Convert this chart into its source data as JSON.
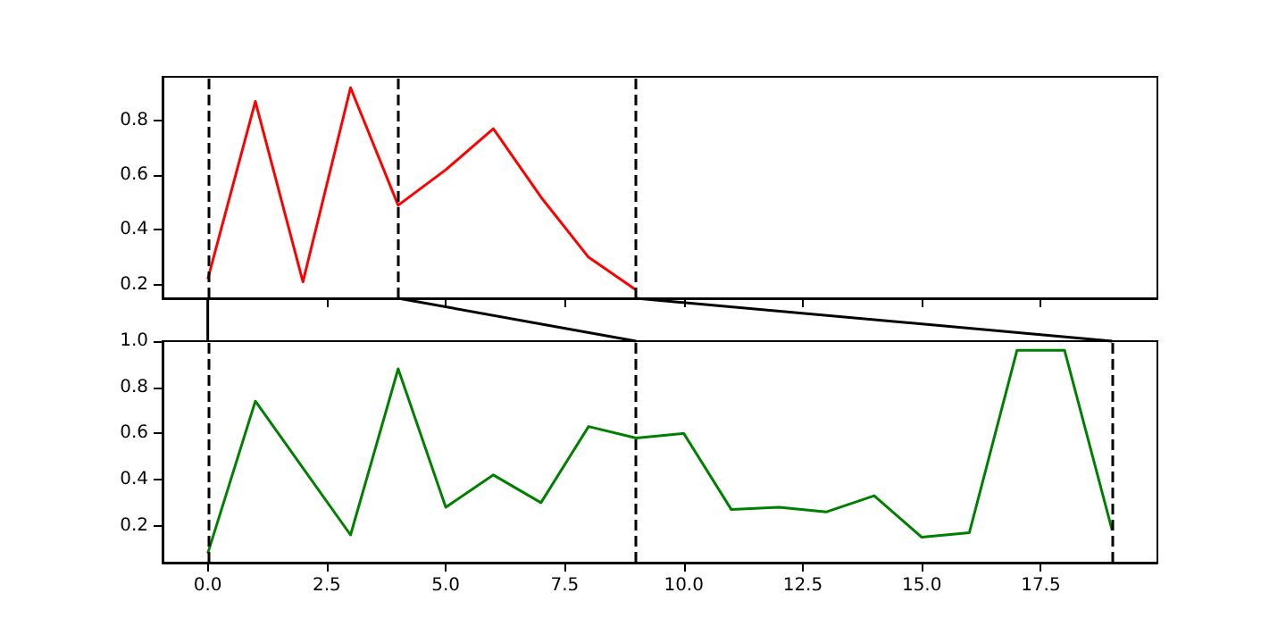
{
  "chart_data": [
    {
      "type": "line",
      "x": [
        0,
        1,
        2,
        3,
        4,
        5,
        6,
        7,
        8,
        9
      ],
      "series": [
        {
          "color": "#ff0000",
          "values": [
            0.22,
            0.87,
            0.21,
            0.92,
            0.49,
            0.62,
            0.77,
            0.52,
            0.3,
            0.18
          ]
        }
      ],
      "xlim": [
        -0.95,
        19.95
      ],
      "ylim": [
        0.15,
        0.96
      ],
      "xticks": [
        {
          "value": 0,
          "label": null
        },
        {
          "value": 2.5,
          "label": null
        },
        {
          "value": 5,
          "label": null
        },
        {
          "value": 7.5,
          "label": null
        },
        {
          "value": 10,
          "label": null
        },
        {
          "value": 12.5,
          "label": null
        },
        {
          "value": 15,
          "label": null
        },
        {
          "value": 17.5,
          "label": null
        }
      ],
      "yticks": [
        0.2,
        0.4,
        0.6,
        0.8
      ],
      "tick_labels": "y",
      "grid": false,
      "ref_lines": [
        {
          "axis": "x",
          "value": 0,
          "color": "#000000",
          "line_style": "dashed"
        },
        {
          "axis": "x",
          "value": 4,
          "color": "#000000",
          "line_style": "dashed"
        },
        {
          "axis": "x",
          "value": 9,
          "color": "#000000",
          "line_style": "dashed"
        }
      ]
    },
    {
      "type": "line",
      "x": [
        0,
        1,
        2,
        3,
        4,
        5,
        6,
        7,
        8,
        9,
        10,
        11,
        12,
        13,
        14,
        15,
        16,
        17,
        18,
        19
      ],
      "series": [
        {
          "color": "#008000",
          "values": [
            0.08,
            0.74,
            0.45,
            0.16,
            0.88,
            0.28,
            0.42,
            0.3,
            0.63,
            0.58,
            0.6,
            0.27,
            0.28,
            0.26,
            0.33,
            0.15,
            0.17,
            0.96,
            0.96,
            0.18
          ]
        }
      ],
      "xlim": [
        -0.95,
        19.95
      ],
      "ylim": [
        0.04,
        1.0
      ],
      "xticks": [
        {
          "value": 0,
          "label": "0.0"
        },
        {
          "value": 2.5,
          "label": "2.5"
        },
        {
          "value": 5,
          "label": "5.0"
        },
        {
          "value": 7.5,
          "label": "7.5"
        },
        {
          "value": 10,
          "label": "10.0"
        },
        {
          "value": 12.5,
          "label": "12.5"
        },
        {
          "value": 15,
          "label": "15.0"
        },
        {
          "value": 17.5,
          "label": "17.5"
        }
      ],
      "yticks": [
        0.2,
        0.4,
        0.6,
        0.8,
        {
          "value": 1.0,
          "label": "1.0"
        }
      ],
      "grid": false,
      "ref_lines": [
        {
          "axis": "x",
          "value": 0,
          "color": "#000000",
          "line_style": "dashed"
        },
        {
          "axis": "x",
          "value": 9,
          "color": "#000000",
          "line_style": "dashed"
        },
        {
          "axis": "x",
          "value": 19,
          "color": "#000000",
          "line_style": "dashed"
        }
      ]
    }
  ]
}
